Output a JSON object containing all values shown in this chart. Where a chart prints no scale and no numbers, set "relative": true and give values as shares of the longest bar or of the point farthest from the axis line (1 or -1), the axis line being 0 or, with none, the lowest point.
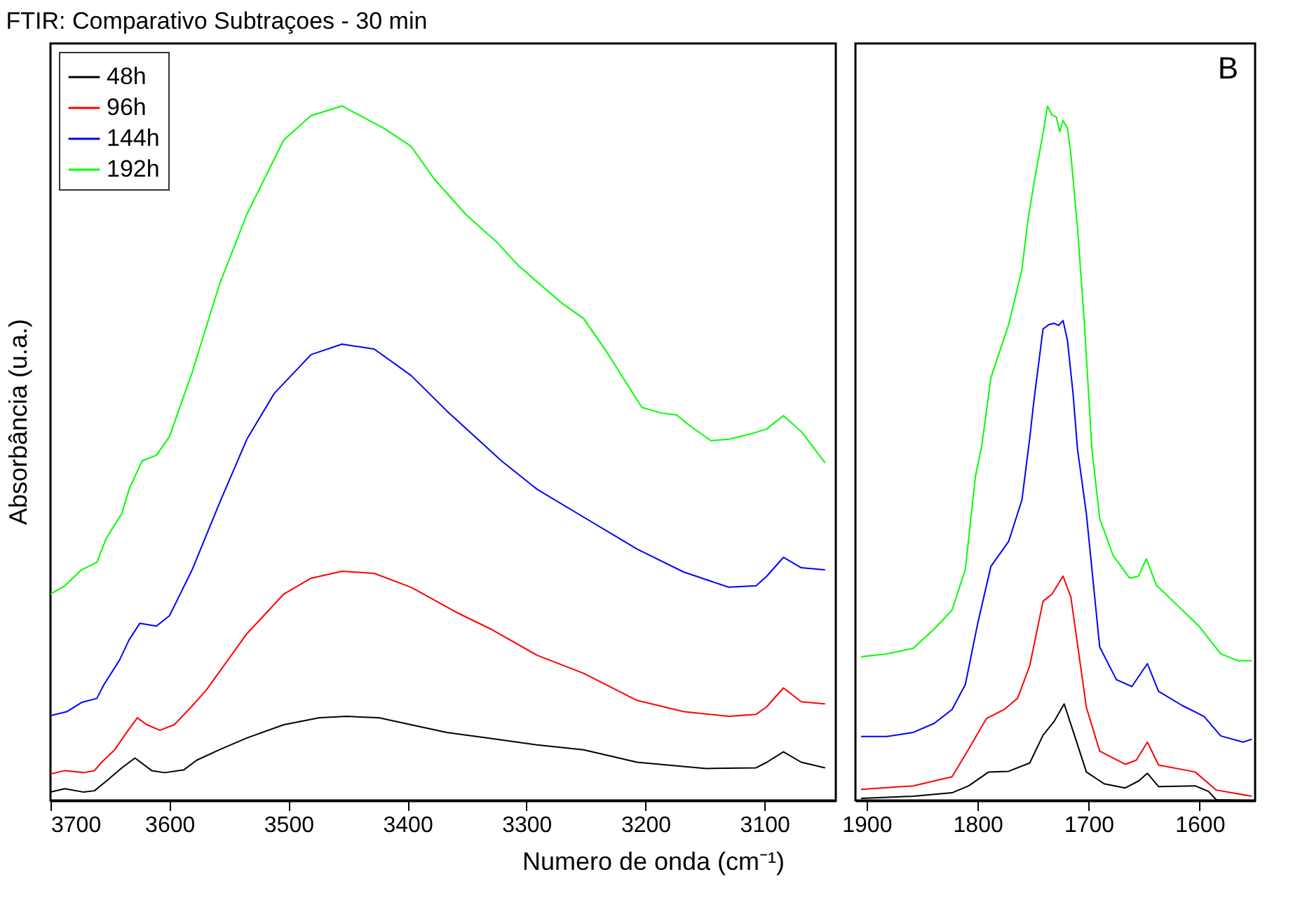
{
  "chart_data": [
    {
      "type": "line",
      "title": "FTIR: Comparativo Subtraçoes - 30 min",
      "ylabel": "Absorbância (u.a.)",
      "relative": true,
      "legend": "top left",
      "xlim": [
        3700,
        3040
      ],
      "xticks": [
        3700,
        3600,
        3500,
        3400,
        3300,
        3200,
        3100
      ],
      "series": [
        {
          "name": "48h",
          "color": "#000000",
          "x": [
            3700,
            3688,
            3672,
            3663,
            3653,
            3640,
            3629,
            3615,
            3604,
            3588,
            3577,
            3558,
            3535,
            3504,
            3474,
            3451,
            3424,
            3397,
            3367,
            3329,
            3291,
            3252,
            3207,
            3149,
            3107,
            3098,
            3084,
            3069,
            3049
          ],
          "values": [
            0.012,
            0.017,
            0.012,
            0.014,
            0.028,
            0.047,
            0.061,
            0.043,
            0.04,
            0.044,
            0.058,
            0.073,
            0.09,
            0.109,
            0.119,
            0.121,
            0.119,
            0.109,
            0.098,
            0.089,
            0.08,
            0.073,
            0.055,
            0.046,
            0.047,
            0.055,
            0.07,
            0.055,
            0.047
          ]
        },
        {
          "name": "96h",
          "color": "#ff0000",
          "x": [
            3700,
            3688,
            3672,
            3663,
            3657,
            3646,
            3636,
            3627,
            3619,
            3608,
            3596,
            3581,
            3569,
            3535,
            3504,
            3481,
            3455,
            3428,
            3397,
            3359,
            3329,
            3291,
            3252,
            3207,
            3168,
            3130,
            3107,
            3098,
            3084,
            3069,
            3049
          ],
          "values": [
            0.038,
            0.043,
            0.04,
            0.043,
            0.055,
            0.073,
            0.098,
            0.119,
            0.109,
            0.101,
            0.109,
            0.136,
            0.159,
            0.24,
            0.297,
            0.32,
            0.33,
            0.327,
            0.307,
            0.271,
            0.246,
            0.209,
            0.183,
            0.144,
            0.128,
            0.121,
            0.124,
            0.135,
            0.162,
            0.142,
            0.139
          ]
        },
        {
          "name": "144h",
          "color": "#0000ff",
          "x": [
            3700,
            3686,
            3674,
            3661,
            3655,
            3642,
            3634,
            3625,
            3611,
            3600,
            3581,
            3558,
            3535,
            3512,
            3481,
            3455,
            3428,
            3397,
            3367,
            3321,
            3291,
            3252,
            3207,
            3168,
            3130,
            3107,
            3098,
            3084,
            3069,
            3049
          ],
          "values": [
            0.122,
            0.128,
            0.141,
            0.147,
            0.167,
            0.202,
            0.231,
            0.255,
            0.251,
            0.266,
            0.332,
            0.428,
            0.52,
            0.586,
            0.642,
            0.657,
            0.65,
            0.612,
            0.561,
            0.489,
            0.448,
            0.408,
            0.362,
            0.329,
            0.307,
            0.309,
            0.323,
            0.35,
            0.335,
            0.332
          ]
        },
        {
          "name": "192h",
          "color": "#00ff00",
          "x": [
            3700,
            3688,
            3674,
            3661,
            3653,
            3640,
            3634,
            3623,
            3611,
            3600,
            3581,
            3558,
            3535,
            3504,
            3481,
            3455,
            3420,
            3397,
            3378,
            3351,
            3325,
            3306,
            3271,
            3252,
            3233,
            3203,
            3187,
            3174,
            3163,
            3145,
            3130,
            3111,
            3098,
            3084,
            3069,
            3049
          ],
          "values": [
            0.297,
            0.309,
            0.332,
            0.343,
            0.378,
            0.413,
            0.448,
            0.489,
            0.497,
            0.524,
            0.616,
            0.743,
            0.844,
            0.951,
            0.986,
            1,
            0.968,
            0.942,
            0.896,
            0.844,
            0.804,
            0.769,
            0.717,
            0.694,
            0.647,
            0.566,
            0.558,
            0.555,
            0.54,
            0.518,
            0.52,
            0.528,
            0.535,
            0.554,
            0.531,
            0.486
          ]
        }
      ]
    },
    {
      "type": "line",
      "xlabel": "Numero de onda (cm⁻¹)",
      "annotations": [
        "B"
      ],
      "relative": true,
      "xlim": [
        1910,
        1550
      ],
      "xticks": [
        1900,
        1800,
        1700,
        1600
      ],
      "series": [
        {
          "color": "#000000",
          "x": [
            1905,
            1858,
            1823,
            1808,
            1790,
            1772,
            1753,
            1741,
            1731,
            1722,
            1714,
            1702,
            1686,
            1667,
            1655,
            1647,
            1637,
            1604,
            1592,
            1585,
            1553
          ],
          "values": [
            0.003,
            0.006,
            0.011,
            0.021,
            0.041,
            0.042,
            0.054,
            0.094,
            0.114,
            0.139,
            0.1,
            0.041,
            0.024,
            0.018,
            0.028,
            0.039,
            0.02,
            0.021,
            0.013,
            0.001,
            0.0
          ]
        },
        {
          "color": "#ff0000",
          "x": [
            1905,
            1858,
            1823,
            1808,
            1792,
            1776,
            1764,
            1753,
            1741,
            1733,
            1723,
            1716,
            1702,
            1690,
            1667,
            1657,
            1647,
            1637,
            1604,
            1585,
            1553
          ],
          "values": [
            0.016,
            0.021,
            0.034,
            0.074,
            0.118,
            0.131,
            0.147,
            0.194,
            0.287,
            0.297,
            0.323,
            0.293,
            0.134,
            0.071,
            0.052,
            0.058,
            0.084,
            0.051,
            0.041,
            0.015,
            0.006
          ]
        },
        {
          "color": "#0000ff",
          "x": [
            1905,
            1882,
            1858,
            1839,
            1823,
            1811,
            1800,
            1788,
            1772,
            1760,
            1753,
            1749,
            1741,
            1736,
            1731,
            1727,
            1723,
            1719,
            1714,
            1710,
            1702,
            1690,
            1675,
            1661,
            1647,
            1637,
            1616,
            1596,
            1581,
            1561,
            1553
          ],
          "values": [
            0.092,
            0.092,
            0.098,
            0.111,
            0.131,
            0.167,
            0.254,
            0.337,
            0.373,
            0.433,
            0.522,
            0.579,
            0.679,
            0.685,
            0.687,
            0.684,
            0.691,
            0.662,
            0.586,
            0.506,
            0.413,
            0.221,
            0.174,
            0.164,
            0.197,
            0.157,
            0.137,
            0.121,
            0.093,
            0.084,
            0.088
          ]
        },
        {
          "color": "#00ff00",
          "x": [
            1905,
            1882,
            1858,
            1839,
            1823,
            1811,
            1802,
            1796,
            1788,
            1772,
            1760,
            1755,
            1749,
            1741,
            1737,
            1733,
            1729,
            1726,
            1723,
            1719,
            1716,
            1710,
            1704,
            1697,
            1690,
            1678,
            1663,
            1655,
            1648,
            1639,
            1624,
            1600,
            1581,
            1565,
            1553
          ],
          "values": [
            0.207,
            0.211,
            0.219,
            0.247,
            0.274,
            0.333,
            0.466,
            0.513,
            0.609,
            0.685,
            0.765,
            0.831,
            0.891,
            0.961,
            1,
            0.987,
            0.984,
            0.963,
            0.979,
            0.968,
            0.931,
            0.825,
            0.692,
            0.506,
            0.406,
            0.353,
            0.32,
            0.323,
            0.348,
            0.31,
            0.287,
            0.25,
            0.211,
            0.201,
            0.201
          ]
        }
      ]
    }
  ]
}
